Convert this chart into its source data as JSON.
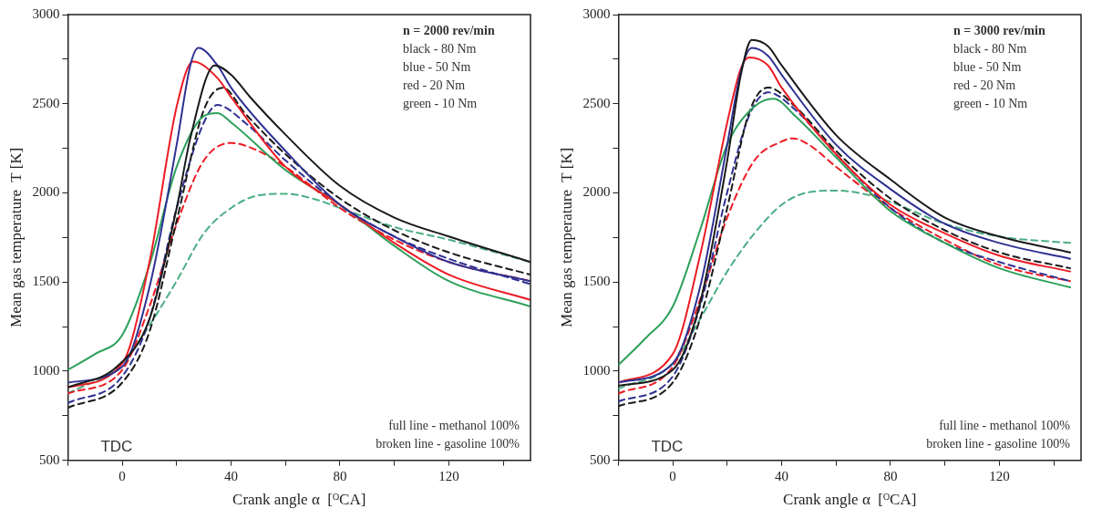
{
  "chart_data": [
    {
      "type": "line",
      "xlabel": "Crank angle α  [ᴼCA]",
      "ylabel": "Mean gas temperature  T [K]",
      "xlim": [
        -20,
        150
      ],
      "ylim": [
        500,
        3000
      ],
      "xticks": [
        {
          "value": -20,
          "label": null
        },
        0,
        {
          "value": 20,
          "label": null
        },
        40,
        {
          "value": 60,
          "label": null
        },
        80,
        {
          "value": 100,
          "label": null
        },
        120,
        {
          "value": 140,
          "label": null
        }
      ],
      "yticks": [
        500,
        {
          "value": 750,
          "label": null
        },
        1000,
        {
          "value": 1250,
          "label": null
        },
        1500,
        {
          "value": 1750,
          "label": null
        },
        2000,
        {
          "value": 2250,
          "label": null
        },
        2500,
        {
          "value": 2750,
          "label": null
        },
        3000
      ],
      "grid": false,
      "legend": false,
      "marker": "none",
      "annotations": [
        "n = 2000 rev/min",
        "black - 80 Nm",
        "blue - 50 Nm",
        "red - 20 Nm",
        "green - 10 Nm",
        "full line - methanol 100%",
        "broken line - gasoline 100%",
        "TDC"
      ],
      "series": [
        {
          "color": "#1a1a1a",
          "line_style": "solid",
          "x": [
            -20,
            -2,
            10,
            20,
            25,
            34,
            40,
            47,
            59,
            80,
            100,
            120,
            150
          ],
          "values": [
            909,
            1025,
            1292,
            1915,
            2306,
            2715,
            2662,
            2537,
            2342,
            2039,
            1861,
            1755,
            1612
          ]
        },
        {
          "color": "#2e3192",
          "line_style": "solid",
          "x": [
            -20,
            0,
            10,
            20,
            25,
            28,
            35,
            40,
            60,
            80,
            100,
            120,
            150
          ],
          "values": [
            936,
            1025,
            1470,
            2270,
            2715,
            2813,
            2715,
            2590,
            2235,
            1933,
            1755,
            1612,
            1505
          ]
        },
        {
          "color": "#ed1c24",
          "line_style": "solid",
          "x": [
            -20,
            0,
            10,
            20,
            26,
            35,
            40,
            60,
            80,
            100,
            120,
            150
          ],
          "values": [
            909,
            1043,
            1612,
            2484,
            2737,
            2644,
            2537,
            2146,
            1933,
            1719,
            1541,
            1399
          ]
        },
        {
          "color": "#2ca05a",
          "line_style": "solid",
          "x": [
            -20,
            -10,
            0,
            10,
            20,
            30,
            35,
            40,
            60,
            80,
            100,
            120,
            150
          ],
          "values": [
            1007,
            1096,
            1203,
            1595,
            2146,
            2431,
            2448,
            2395,
            2128,
            1933,
            1702,
            1505,
            1363
          ]
        },
        {
          "color": "#1a1a1a",
          "line_style": "dashed",
          "x": [
            -20,
            0,
            10,
            20,
            30,
            37,
            45,
            60,
            80,
            100,
            120,
            150
          ],
          "values": [
            794,
            936,
            1221,
            1844,
            2466,
            2590,
            2448,
            2217,
            1968,
            1790,
            1666,
            1541
          ]
        },
        {
          "color": "#2e3192",
          "line_style": "dashed",
          "x": [
            -20,
            0,
            10,
            20,
            30,
            35,
            45,
            60,
            80,
            100,
            120,
            150
          ],
          "values": [
            821,
            971,
            1292,
            1915,
            2395,
            2493,
            2395,
            2182,
            1933,
            1755,
            1630,
            1488
          ]
        },
        {
          "color": "#ed1c24",
          "line_style": "dashed",
          "x": [
            -20,
            0,
            10,
            20,
            30,
            40,
            50,
            60,
            80,
            100,
            120,
            150
          ],
          "values": [
            874,
            1007,
            1363,
            1826,
            2182,
            2280,
            2235,
            2146,
            1915,
            1737,
            1612,
            1505
          ]
        },
        {
          "color": "#4cae84",
          "line_style": "dashed",
          "x": [
            -20,
            0,
            10,
            20,
            30,
            40,
            50,
            60,
            70,
            80,
            100,
            120,
            150
          ],
          "values": [
            874,
            1043,
            1257,
            1506,
            1773,
            1915,
            1986,
            1995,
            1968,
            1915,
            1808,
            1737,
            1612
          ]
        }
      ]
    },
    {
      "type": "line",
      "xlabel": "Crank angle α  [ᴼCA]",
      "ylabel": "Mean gas temperature  T [K]",
      "xlim": [
        -20,
        150
      ],
      "ylim": [
        500,
        3000
      ],
      "xticks": [
        {
          "value": -20,
          "label": null
        },
        0,
        {
          "value": 20,
          "label": null
        },
        40,
        {
          "value": 60,
          "label": null
        },
        80,
        {
          "value": 100,
          "label": null
        },
        120,
        {
          "value": 140,
          "label": null
        }
      ],
      "yticks": [
        500,
        {
          "value": 750,
          "label": null
        },
        1000,
        {
          "value": 1250,
          "label": null
        },
        1500,
        {
          "value": 1750,
          "label": null
        },
        2000,
        {
          "value": 2250,
          "label": null
        },
        2500,
        {
          "value": 2750,
          "label": null
        },
        3000
      ],
      "grid": false,
      "legend": false,
      "marker": "none",
      "annotations": [
        "n = 3000 rev/min",
        "black - 80 Nm",
        "blue - 50 Nm",
        "red - 20 Nm",
        "green - 10 Nm",
        "full line - methanol 100%",
        "broken line - gasoline 100%",
        "TDC"
      ],
      "series": [
        {
          "color": "#1a1a1a",
          "line_style": "solid",
          "x": [
            -20,
            0,
            10,
            20,
            25,
            29,
            35,
            40,
            60,
            80,
            100,
            120,
            146
          ],
          "values": [
            918,
            1007,
            1381,
            2182,
            2662,
            2858,
            2822,
            2715,
            2324,
            2075,
            1861,
            1755,
            1666
          ]
        },
        {
          "color": "#2e3192",
          "line_style": "solid",
          "x": [
            -20,
            0,
            10,
            20,
            25,
            29,
            35,
            40,
            60,
            80,
            100,
            120,
            146
          ],
          "values": [
            936,
            1043,
            1470,
            2270,
            2680,
            2813,
            2769,
            2662,
            2270,
            2021,
            1826,
            1719,
            1630
          ]
        },
        {
          "color": "#ed1c24",
          "line_style": "solid",
          "x": [
            -20,
            0,
            10,
            20,
            25,
            28,
            35,
            40,
            60,
            80,
            100,
            120,
            146
          ],
          "values": [
            936,
            1096,
            1648,
            2395,
            2698,
            2760,
            2715,
            2590,
            2217,
            1933,
            1773,
            1648,
            1559
          ]
        },
        {
          "color": "#2ca05a",
          "line_style": "solid",
          "x": [
            -20,
            -10,
            0,
            10,
            20,
            30,
            37,
            45,
            60,
            80,
            100,
            120,
            146
          ],
          "values": [
            1034,
            1185,
            1363,
            1790,
            2270,
            2484,
            2528,
            2431,
            2199,
            1897,
            1719,
            1577,
            1470
          ]
        },
        {
          "color": "#1a1a1a",
          "line_style": "dashed",
          "x": [
            -20,
            0,
            10,
            20,
            28,
            35,
            45,
            60,
            80,
            100,
            120,
            146
          ],
          "values": [
            803,
            936,
            1292,
            1915,
            2448,
            2591,
            2484,
            2235,
            1968,
            1790,
            1666,
            1577
          ]
        },
        {
          "color": "#2e3192",
          "line_style": "dashed",
          "x": [
            -20,
            0,
            10,
            20,
            28,
            35,
            45,
            60,
            80,
            100,
            120,
            146
          ],
          "values": [
            829,
            971,
            1363,
            2004,
            2431,
            2564,
            2466,
            2217,
            1915,
            1719,
            1612,
            1505
          ]
        },
        {
          "color": "#ed1c24",
          "line_style": "dashed",
          "x": [
            -20,
            0,
            10,
            20,
            30,
            40,
            44,
            50,
            60,
            80,
            100,
            120,
            146
          ],
          "values": [
            874,
            1025,
            1399,
            1862,
            2182,
            2288,
            2306,
            2270,
            2146,
            1915,
            1737,
            1595,
            1505
          ]
        },
        {
          "color": "#4cae84",
          "line_style": "dashed",
          "x": [
            -20,
            0,
            10,
            20,
            30,
            40,
            50,
            60,
            70,
            80,
            100,
            120,
            146
          ],
          "values": [
            901,
            1043,
            1292,
            1559,
            1773,
            1933,
            2004,
            2013,
            1995,
            1950,
            1826,
            1755,
            1719
          ]
        }
      ]
    }
  ]
}
